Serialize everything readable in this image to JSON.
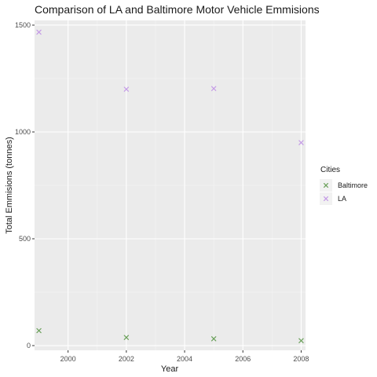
{
  "chart_data": {
    "type": "scatter",
    "title": "Comparison of LA and Baltimore Motor Vehicle Emmisions",
    "xlabel": "Year",
    "ylabel": "Total Emmisions (tonnes)",
    "xlim": [
      1998.85,
      2008.15
    ],
    "ylim": [
      -22,
      1522
    ],
    "x_ticks": [
      2000,
      2002,
      2004,
      2006,
      2008
    ],
    "y_ticks": [
      0,
      500,
      1000,
      1500
    ],
    "marker": "x",
    "legend": {
      "title": "Cities",
      "position": "right"
    },
    "series": [
      {
        "name": "Baltimore",
        "color": "#6aa05a",
        "x": [
          1999,
          2002,
          2005,
          2008
        ],
        "y": [
          70,
          38,
          32,
          23
        ]
      },
      {
        "name": "LA",
        "color": "#c49ae6",
        "x": [
          1999,
          2002,
          2005,
          2008
        ],
        "y": [
          1467,
          1200,
          1203,
          950
        ]
      }
    ]
  }
}
